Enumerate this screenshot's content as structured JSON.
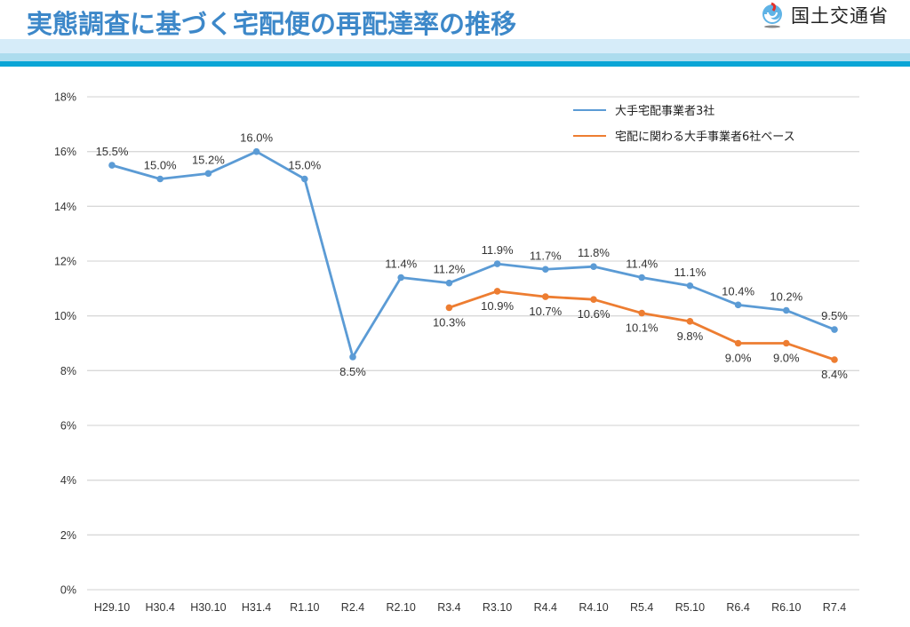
{
  "header": {
    "title": "実態調査に基づく宅配便の再配達率の推移",
    "logo_text": "国土交通省",
    "logo_icon": "mlit-logo-icon"
  },
  "colors": {
    "title": "#3d88c9",
    "series_blue": "#5b9bd5",
    "series_orange": "#ed7d31",
    "gridline": "#d9d9d9",
    "band_light": "#d6ecf9",
    "band_mid": "#acdcee",
    "band_dark": "#0aa5d6"
  },
  "chart_data": {
    "type": "line",
    "title": "実態調査に基づく宅配便の再配達率の推移",
    "xlabel": "",
    "ylabel": "",
    "ylim": [
      0,
      18
    ],
    "yticks": [
      0,
      2,
      4,
      6,
      8,
      10,
      12,
      14,
      16,
      18
    ],
    "ytick_labels": [
      "0%",
      "2%",
      "4%",
      "6%",
      "8%",
      "10%",
      "12%",
      "14%",
      "16%",
      "18%"
    ],
    "grid": true,
    "legend_position": "top-right",
    "categories": [
      "H29.10",
      "H30.4",
      "H30.10",
      "H31.4",
      "R1.10",
      "R2.4",
      "R2.10",
      "R3.4",
      "R3.10",
      "R4.4",
      "R4.10",
      "R5.4",
      "R5.10",
      "R6.4",
      "R6.10",
      "R7.4"
    ],
    "series": [
      {
        "name": "大手宅配事業者3社",
        "color": "#5b9bd5",
        "values": [
          15.5,
          15.0,
          15.2,
          16.0,
          15.0,
          8.5,
          11.4,
          11.2,
          11.9,
          11.7,
          11.8,
          11.4,
          11.1,
          10.4,
          10.2,
          9.5
        ],
        "labels": [
          "15.5%",
          "15.0%",
          "15.2%",
          "16.0%",
          "15.0%",
          "8.5%",
          "11.4%",
          "11.2%",
          "11.9%",
          "11.7%",
          "11.8%",
          "11.4%",
          "11.1%",
          "10.4%",
          "10.2%",
          "9.5%"
        ],
        "label_position": [
          "above",
          "above",
          "above",
          "above",
          "above",
          "below",
          "above",
          "above",
          "above",
          "above",
          "above",
          "above",
          "above",
          "above",
          "above",
          "above"
        ]
      },
      {
        "name": "宅配に関わる大手事業者6社ベース",
        "color": "#ed7d31",
        "values": [
          null,
          null,
          null,
          null,
          null,
          null,
          null,
          10.3,
          10.9,
          10.7,
          10.6,
          10.1,
          9.8,
          9.0,
          9.0,
          8.4
        ],
        "labels": [
          null,
          null,
          null,
          null,
          null,
          null,
          null,
          "10.3%",
          "10.9%",
          "10.7%",
          "10.6%",
          "10.1%",
          "9.8%",
          "9.0%",
          "9.0%",
          "8.4%"
        ],
        "label_position": [
          null,
          null,
          null,
          null,
          null,
          null,
          null,
          "below",
          "below",
          "below",
          "below",
          "below",
          "below",
          "below",
          "below",
          "below"
        ]
      }
    ]
  }
}
